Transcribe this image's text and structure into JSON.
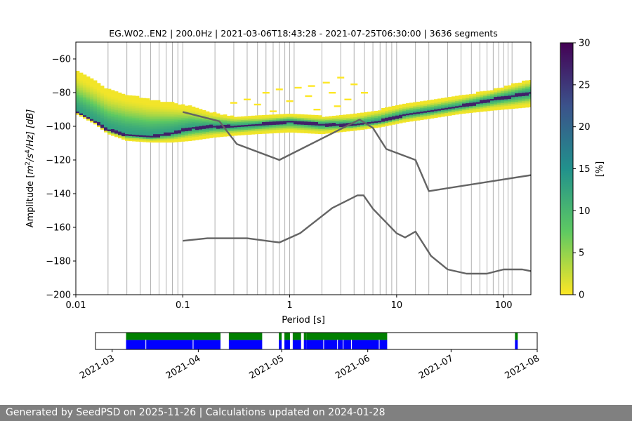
{
  "chart_data": [
    {
      "type": "heatmap",
      "title": "EG.W02..EN2 | 200.0Hz | 2021-03-06T18:43:28 - 2021-07-25T06:30:00 | 3636 segments",
      "xlabel": "Period [s]",
      "ylabel_prefix": "Amplitude [",
      "ylabel_mid": "m",
      "ylabel_sup1": "2",
      "ylabel_s": "/s",
      "ylabel_sup2": "4",
      "ylabel_suffix": "/Hz] [dB]",
      "xscale": "log",
      "xlim": [
        0.01,
        180
      ],
      "ylim": [
        -200,
        -50
      ],
      "xticks": [
        {
          "value": 0.01,
          "label": "0.01"
        },
        {
          "value": 0.1,
          "label": "0.1"
        },
        {
          "value": 1,
          "label": "1"
        },
        {
          "value": 10,
          "label": "10"
        },
        {
          "value": 100,
          "label": "100"
        }
      ],
      "yticks": [
        {
          "value": -60,
          "label": "−60"
        },
        {
          "value": -80,
          "label": "−80"
        },
        {
          "value": -100,
          "label": "−100"
        },
        {
          "value": -120,
          "label": "−120"
        },
        {
          "value": -140,
          "label": "−140"
        },
        {
          "value": -160,
          "label": "−160"
        },
        {
          "value": -180,
          "label": "−180"
        },
        {
          "value": -200,
          "label": "−200"
        }
      ],
      "grid": "vertical lines at periods",
      "colorbar": {
        "label": "[%]",
        "range": [
          0,
          30
        ],
        "ticks": [
          {
            "value": 0,
            "label": "0"
          },
          {
            "value": 5,
            "label": "5"
          },
          {
            "value": 10,
            "label": "10"
          },
          {
            "value": 15,
            "label": "15"
          },
          {
            "value": 20,
            "label": "20"
          },
          {
            "value": 25,
            "label": "25"
          },
          {
            "value": 30,
            "label": "30"
          }
        ],
        "colormap": [
          "#fde725",
          "#5ec962",
          "#21918c",
          "#3b528b",
          "#440154"
        ]
      },
      "heatmap_band": [
        {
          "period": 0.01,
          "upper": -67,
          "lower": -92,
          "mode": -91
        },
        {
          "period": 0.015,
          "upper": -73,
          "lower": -98,
          "mode": -97
        },
        {
          "period": 0.02,
          "upper": -78,
          "lower": -104,
          "mode": -102
        },
        {
          "period": 0.03,
          "upper": -81,
          "lower": -108,
          "mode": -105
        },
        {
          "period": 0.05,
          "upper": -84,
          "lower": -109,
          "mode": -106
        },
        {
          "period": 0.08,
          "upper": -86,
          "lower": -109,
          "mode": -104
        },
        {
          "period": 0.12,
          "upper": -88,
          "lower": -108,
          "mode": -101
        },
        {
          "period": 0.2,
          "upper": -92,
          "lower": -106,
          "mode": -100
        },
        {
          "period": 0.3,
          "upper": -94,
          "lower": -105,
          "mode": -100
        },
        {
          "period": 0.5,
          "upper": -94,
          "lower": -104,
          "mode": -99
        },
        {
          "period": 1,
          "upper": -93,
          "lower": -103,
          "mode": -97
        },
        {
          "period": 2,
          "upper": -94,
          "lower": -104,
          "mode": -99
        },
        {
          "period": 4,
          "upper": -93,
          "lower": -102,
          "mode": -99
        },
        {
          "period": 7,
          "upper": -90,
          "lower": -100,
          "mode": -97
        },
        {
          "period": 12,
          "upper": -87,
          "lower": -97,
          "mode": -93
        },
        {
          "period": 20,
          "upper": -85,
          "lower": -95,
          "mode": -91
        },
        {
          "period": 40,
          "upper": -82,
          "lower": -92,
          "mode": -88
        },
        {
          "period": 80,
          "upper": -78,
          "lower": -90,
          "mode": -84
        },
        {
          "period": 180,
          "upper": -72,
          "lower": -88,
          "mode": -80
        }
      ],
      "sparse_cluster": [
        {
          "period": 0.3,
          "amplitude": -86
        },
        {
          "period": 0.4,
          "amplitude": -84
        },
        {
          "period": 0.6,
          "amplitude": -80
        },
        {
          "period": 0.8,
          "amplitude": -78
        },
        {
          "period": 1.2,
          "amplitude": -77
        },
        {
          "period": 1.6,
          "amplitude": -76
        },
        {
          "period": 2.2,
          "amplitude": -74
        },
        {
          "period": 3,
          "amplitude": -71
        },
        {
          "period": 4,
          "amplitude": -75
        },
        {
          "period": 5,
          "amplitude": -80
        },
        {
          "period": 0.5,
          "amplitude": -87
        },
        {
          "period": 1,
          "amplitude": -85
        },
        {
          "period": 1.5,
          "amplitude": -82
        },
        {
          "period": 2.5,
          "amplitude": -80
        },
        {
          "period": 3.5,
          "amplitude": -84
        },
        {
          "period": 0.7,
          "amplitude": -91
        },
        {
          "period": 1.8,
          "amplitude": -90
        },
        {
          "period": 2.8,
          "amplitude": -88
        }
      ],
      "series": [
        {
          "name": "upper-model",
          "points": [
            [
              0.1,
              -91.5
            ],
            [
              0.22,
              -97
            ],
            [
              0.32,
              -110.5
            ],
            [
              0.8,
              -120
            ],
            [
              4.5,
              -96
            ],
            [
              6,
              -101
            ],
            [
              8,
              -113.5
            ],
            [
              15,
              -120
            ],
            [
              20,
              -138.5
            ],
            [
              180,
              -129
            ]
          ]
        },
        {
          "name": "lower-model",
          "points": [
            [
              0.1,
              -168
            ],
            [
              0.17,
              -166.5
            ],
            [
              0.4,
              -166.5
            ],
            [
              0.8,
              -169
            ],
            [
              1.25,
              -163.5
            ],
            [
              2.5,
              -148.5
            ],
            [
              4.3,
              -141
            ],
            [
              4.9,
              -141
            ],
            [
              6,
              -149
            ],
            [
              10,
              -163.5
            ],
            [
              12,
              -166
            ],
            [
              15,
              -162.5
            ],
            [
              21,
              -177
            ],
            [
              30,
              -185
            ],
            [
              45,
              -187.5
            ],
            [
              70,
              -187.5
            ],
            [
              100,
              -185
            ],
            [
              150,
              -185
            ],
            [
              180,
              -186
            ]
          ]
        }
      ],
      "vertical_gridlines": [
        0.02,
        0.03,
        0.04,
        0.05,
        0.06,
        0.07,
        0.08,
        0.09,
        0.1,
        0.2,
        0.3,
        0.4,
        0.5,
        0.6,
        0.7,
        0.8,
        0.9,
        1,
        1.1,
        2,
        3,
        4,
        5,
        6,
        7,
        8,
        9,
        10,
        15,
        20,
        30,
        40,
        50,
        60,
        70,
        80,
        90,
        100,
        110,
        120
      ]
    },
    {
      "type": "timeline",
      "description": "data availability",
      "date_range": [
        "2021-02-23",
        "2021-08-01"
      ],
      "xticks": [
        "2021-03",
        "2021-04",
        "2021-05",
        "2021-06",
        "2021-07",
        "2021-08"
      ],
      "xtick_dates": [
        "2021-03-01",
        "2021-04-01",
        "2021-05-01",
        "2021-06-01",
        "2021-07-01",
        "2021-08-01"
      ],
      "used_color": "#008000",
      "available_color": "#0000ff",
      "segments": [
        [
          "2021-03-06",
          "2021-04-09"
        ],
        [
          "2021-04-12",
          "2021-04-24"
        ],
        [
          "2021-04-30",
          "2021-05-01"
        ],
        [
          "2021-05-02",
          "2021-05-04"
        ],
        [
          "2021-05-05",
          "2021-05-08"
        ],
        [
          "2021-05-09",
          "2021-05-10"
        ],
        [
          "2021-05-10",
          "2021-06-08"
        ],
        [
          "2021-07-24",
          "2021-07-25"
        ]
      ],
      "gaps": [
        "2021-03-13",
        "2021-03-30",
        "2021-05-16",
        "2021-05-21",
        "2021-05-23",
        "2021-05-26",
        "2021-06-05"
      ]
    }
  ],
  "footer": {
    "text": "Generated by SeedPSD on 2025-11-26 | Calculations updated on 2024-01-28"
  }
}
